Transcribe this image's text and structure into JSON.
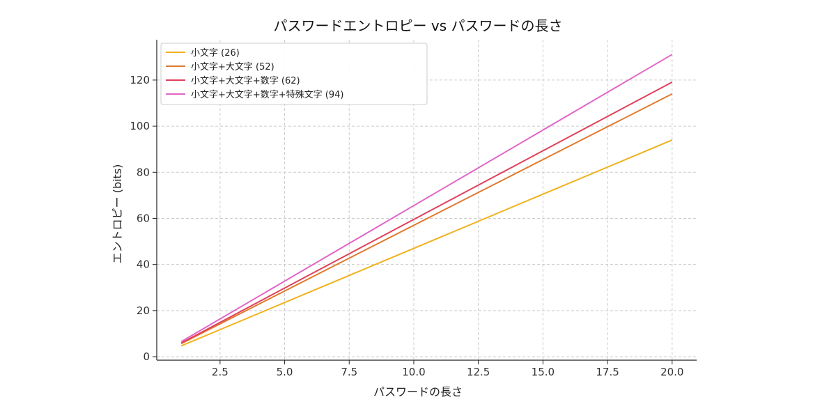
{
  "chart_data": {
    "type": "line",
    "title": "パスワードエントロピー vs パスワードの長さ",
    "xlabel": "パスワードの長さ",
    "ylabel": "エントロピー (bits)",
    "xlim": [
      0.05,
      20.95
    ],
    "ylim": [
      -1.5,
      137.5
    ],
    "x_ticks": [
      2.5,
      5.0,
      7.5,
      10.0,
      12.5,
      15.0,
      17.5,
      20.0
    ],
    "x_tick_labels": [
      "2.5",
      "5.0",
      "7.5",
      "10.0",
      "12.5",
      "15.0",
      "17.5",
      "20.0"
    ],
    "y_ticks": [
      0,
      20,
      40,
      60,
      80,
      100,
      120
    ],
    "y_tick_labels": [
      "0",
      "20",
      "40",
      "60",
      "80",
      "100",
      "120"
    ],
    "grid": true,
    "legend_position": "top-left",
    "x": [
      1,
      20
    ],
    "series": [
      {
        "name": "小文字 (26)",
        "color": "#f0b21e",
        "values": [
          4.7,
          94.0
        ]
      },
      {
        "name": "小文字+大文字 (52)",
        "color": "#e07a2e",
        "values": [
          5.7,
          114.0
        ]
      },
      {
        "name": "小文字+大文字+数字 (62)",
        "color": "#e0405a",
        "values": [
          5.95,
          119.1
        ]
      },
      {
        "name": "小文字+大文字+数字+特殊文字 (94)",
        "color": "#e066c8",
        "values": [
          6.55,
          131.1
        ]
      }
    ]
  }
}
